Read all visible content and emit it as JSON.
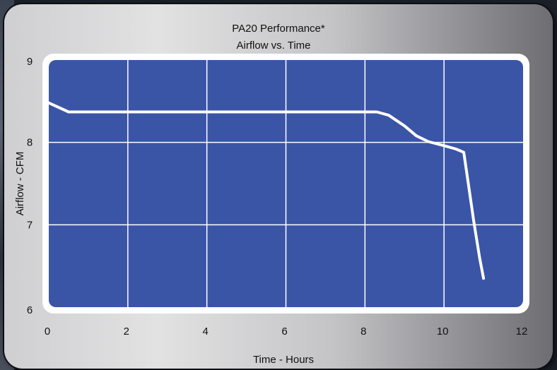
{
  "chart_data": {
    "type": "line",
    "title": "PA20 Performance*",
    "subtitle": "Airflow vs. Time",
    "xlabel": "Time - Hours",
    "ylabel": "Airflow - CFM",
    "xlim": [
      0,
      12
    ],
    "ylim": [
      6,
      9
    ],
    "xticks": [
      0,
      2,
      4,
      6,
      8,
      10,
      12
    ],
    "yticks": [
      6,
      7,
      8,
      9
    ],
    "grid": true,
    "colors": {
      "plot_background": "#3a55a6",
      "line": "#ffffff",
      "frame": "#ffffff"
    },
    "series": [
      {
        "x": [
          0,
          0.5,
          1,
          2,
          3,
          4,
          5,
          6,
          7,
          8,
          8.3,
          8.6,
          9.0,
          9.3,
          9.6,
          10.0,
          10.3,
          10.5,
          10.6,
          10.75,
          10.9,
          11.0
        ],
        "y": [
          8.48,
          8.37,
          8.37,
          8.37,
          8.37,
          8.37,
          8.37,
          8.37,
          8.37,
          8.37,
          8.37,
          8.33,
          8.2,
          8.08,
          8.01,
          7.96,
          7.92,
          7.88,
          7.55,
          7.05,
          6.6,
          6.35
        ]
      }
    ]
  }
}
